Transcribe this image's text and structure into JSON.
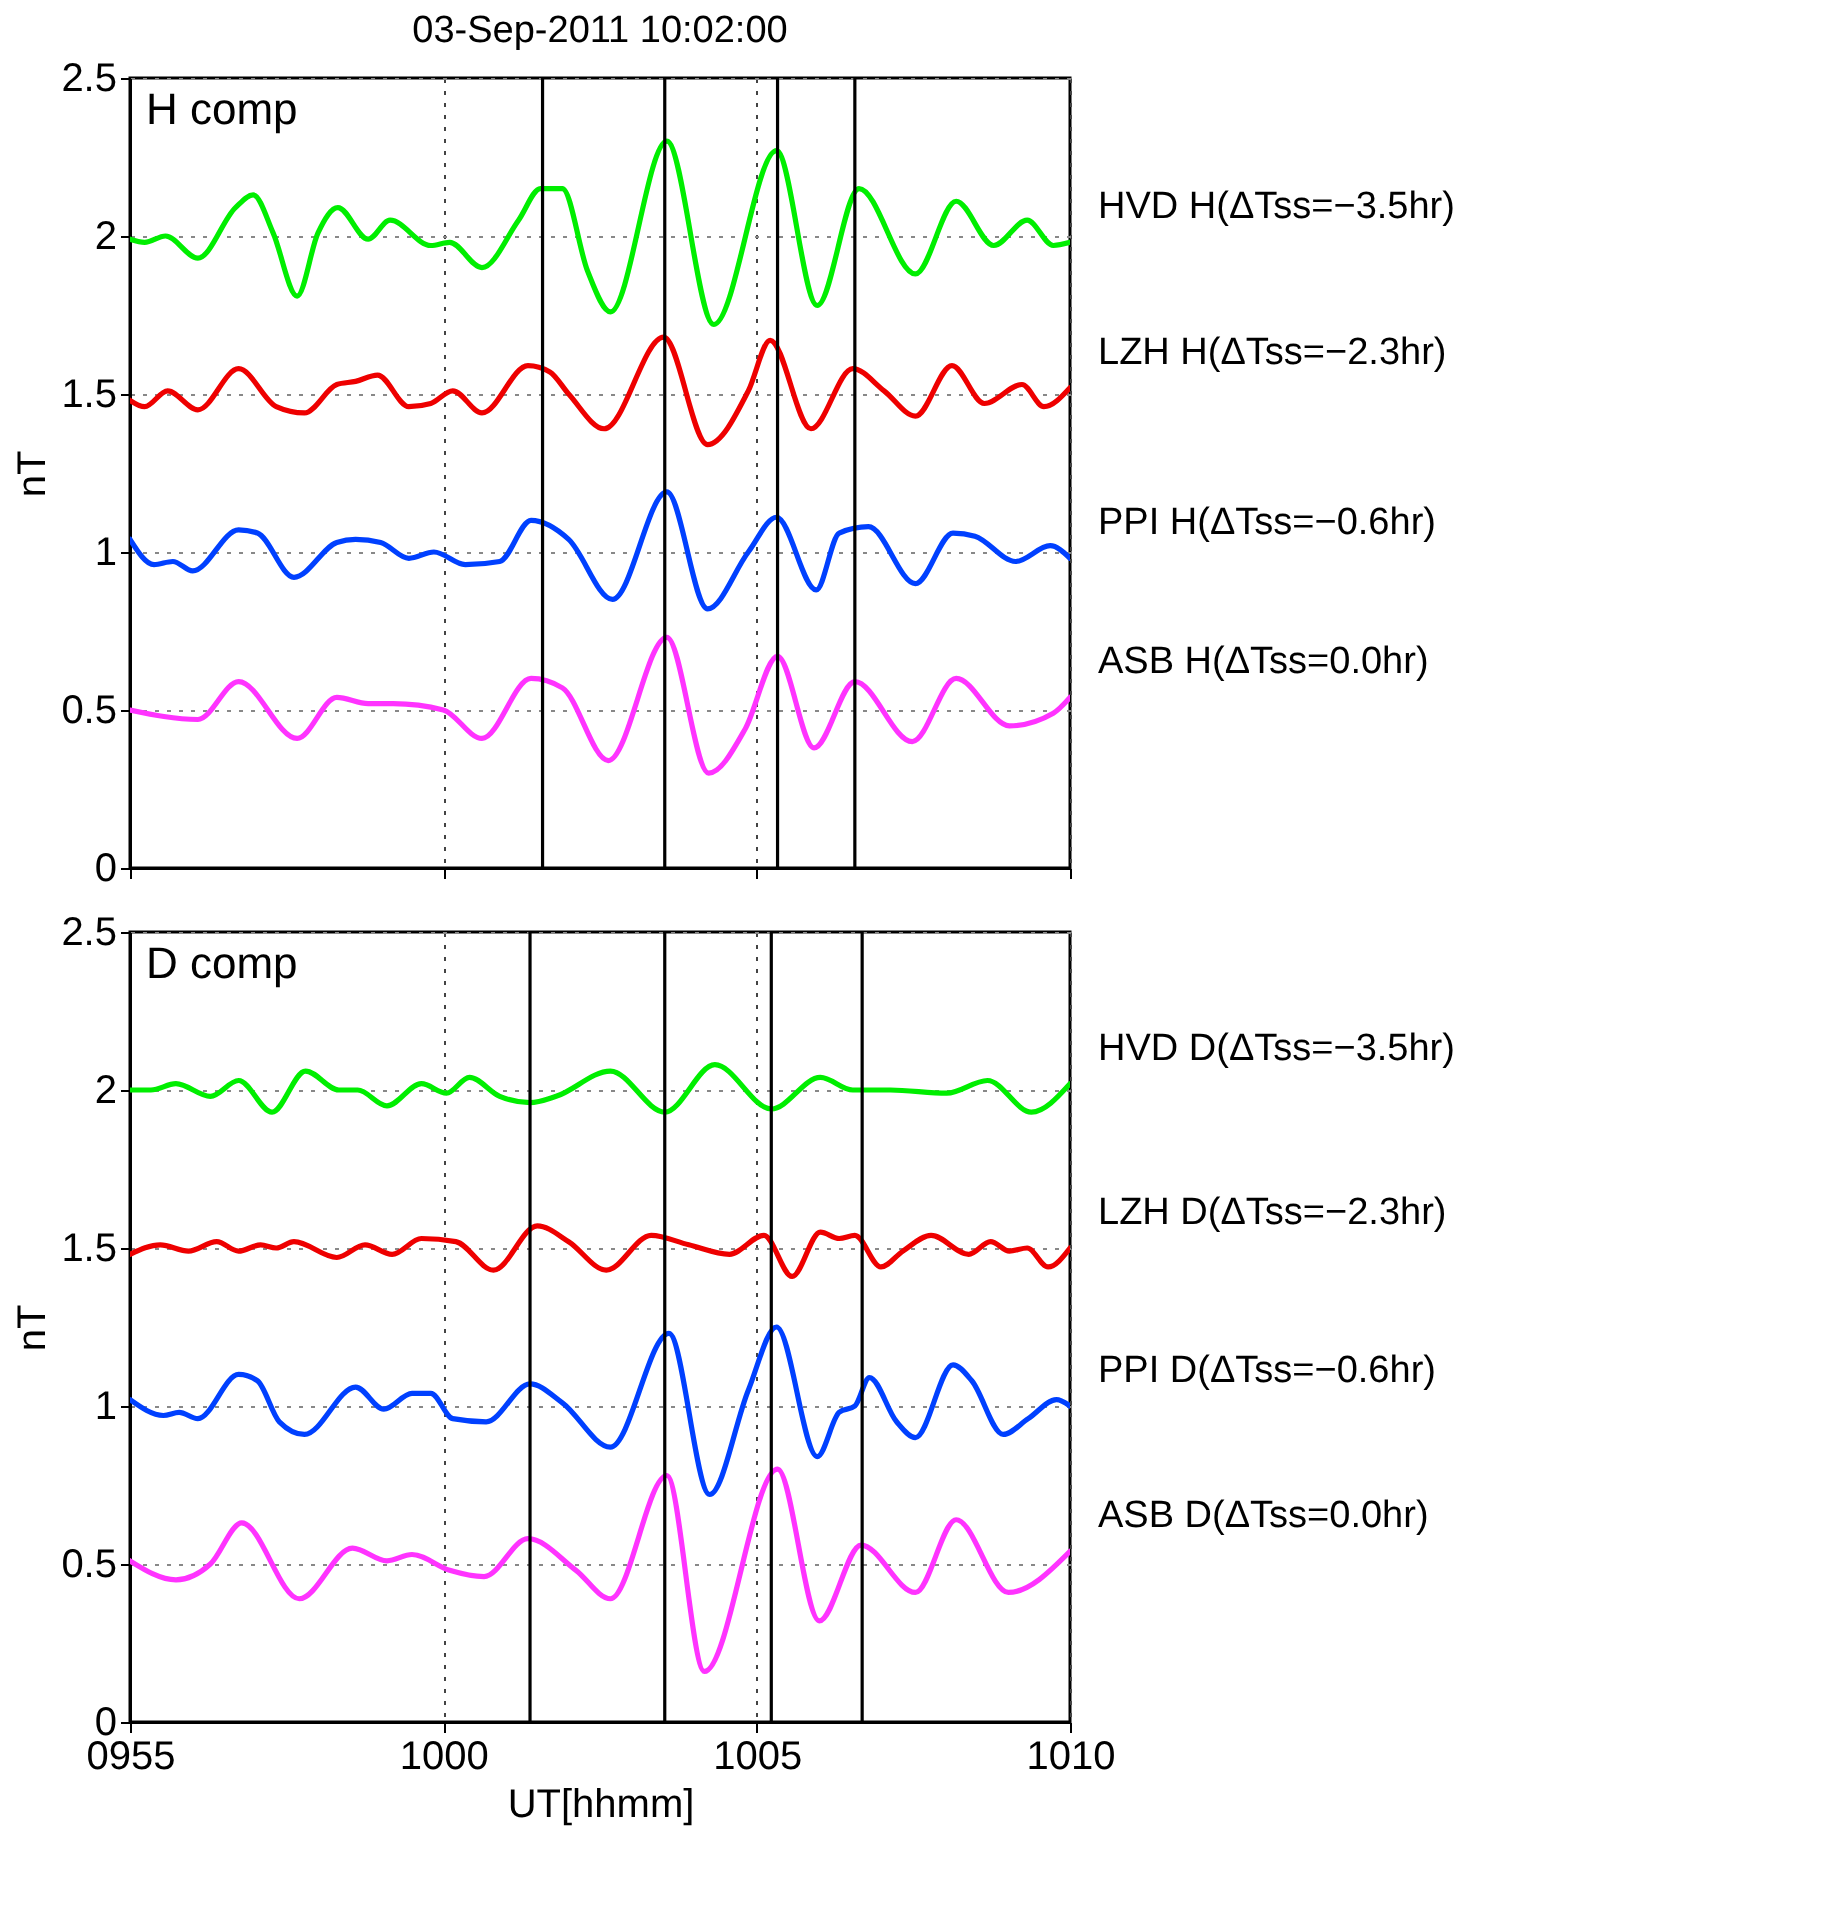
{
  "chart_data": [
    {
      "type": "line",
      "title": "03-Sep-2011 10:02:00",
      "annotations": [
        "H comp"
      ],
      "ylabel": "nT",
      "xlim": [
        "2011-09-03T09:55",
        "2011-09-03T10:10"
      ],
      "xticks": [
        {
          "value": "2011-09-03T09:55",
          "label": null
        },
        {
          "value": "2011-09-03T10:00",
          "label": null
        },
        {
          "value": "2011-09-03T10:05",
          "label": null
        },
        {
          "value": "2011-09-03T10:10",
          "label": null
        }
      ],
      "ylim": [
        0,
        2.5
      ],
      "yticks": [
        0,
        0.5,
        1,
        1.5,
        2,
        2.5
      ],
      "grid": true,
      "tick_labels": "y",
      "line_style": "solid",
      "ref_lines": [
        {
          "axis": "x",
          "value": "2011-09-03T10:01:35",
          "color": "#000000"
        },
        {
          "axis": "x",
          "value": "2011-09-03T10:03:32",
          "color": "#000000"
        },
        {
          "axis": "x",
          "value": "2011-09-03T10:05:20",
          "color": "#000000"
        },
        {
          "axis": "x",
          "value": "2011-09-03T10:06:34",
          "color": "#000000"
        }
      ],
      "series": [
        {
          "name": "HVD H(ΔTss=−3.5hr)",
          "color": "#00ee00",
          "x": [
            "2011-09-03T09:55:00",
            "2011-09-03T09:55:14",
            "2011-09-03T09:55:34",
            "2011-09-03T09:56:05",
            "2011-09-03T09:56:41",
            "2011-09-03T09:56:58",
            "2011-09-03T09:57:17",
            "2011-09-03T09:57:40",
            "2011-09-03T09:58:00",
            "2011-09-03T09:58:19",
            "2011-09-03T09:58:48",
            "2011-09-03T09:59:09",
            "2011-09-03T09:59:48",
            "2011-09-03T10:00:06",
            "2011-09-03T10:00:37",
            "2011-09-03T10:01:12",
            "2011-09-03T10:01:33",
            "2011-09-03T10:01:54",
            "2011-09-03T10:02:18",
            "2011-09-03T10:02:40",
            "2011-09-03T10:03:34",
            "2011-09-03T10:04:19",
            "2011-09-03T10:05:19",
            "2011-09-03T10:05:58",
            "2011-09-03T10:06:38",
            "2011-09-03T10:07:32",
            "2011-09-03T10:08:11",
            "2011-09-03T10:08:47",
            "2011-09-03T10:09:19",
            "2011-09-03T10:09:44",
            "2011-09-03T10:10:00"
          ],
          "values": [
            1.99,
            1.98,
            2.0,
            1.93,
            2.09,
            2.13,
            2.01,
            1.81,
            2.01,
            2.09,
            1.99,
            2.05,
            1.97,
            1.98,
            1.9,
            2.05,
            2.15,
            2.15,
            1.89,
            1.76,
            2.3,
            1.72,
            2.27,
            1.78,
            2.15,
            1.88,
            2.11,
            1.97,
            2.05,
            1.97,
            1.98
          ]
        },
        {
          "name": "LZH H(ΔTss=−2.3hr)",
          "color": "#ee0000",
          "x": [
            "2011-09-03T09:55:00",
            "2011-09-03T09:55:14",
            "2011-09-03T09:55:36",
            "2011-09-03T09:56:05",
            "2011-09-03T09:56:44",
            "2011-09-03T09:57:20",
            "2011-09-03T09:57:47",
            "2011-09-03T09:58:18",
            "2011-09-03T09:58:36",
            "2011-09-03T09:58:57",
            "2011-09-03T09:59:27",
            "2011-09-03T09:59:48",
            "2011-09-03T10:00:09",
            "2011-09-03T10:00:37",
            "2011-09-03T10:01:21",
            "2011-09-03T10:01:42",
            "2011-09-03T10:02:00",
            "2011-09-03T10:02:34",
            "2011-09-03T10:03:31",
            "2011-09-03T10:04:13",
            "2011-09-03T10:04:52",
            "2011-09-03T10:05:13",
            "2011-09-03T10:05:52",
            "2011-09-03T10:06:32",
            "2011-09-03T10:07:02",
            "2011-09-03T10:07:32",
            "2011-09-03T10:08:07",
            "2011-09-03T10:08:38",
            "2011-09-03T10:09:14",
            "2011-09-03T10:09:35",
            "2011-09-03T10:10:00"
          ],
          "values": [
            1.48,
            1.46,
            1.51,
            1.45,
            1.58,
            1.46,
            1.44,
            1.53,
            1.54,
            1.56,
            1.46,
            1.47,
            1.51,
            1.44,
            1.59,
            1.57,
            1.5,
            1.39,
            1.68,
            1.34,
            1.51,
            1.67,
            1.39,
            1.58,
            1.51,
            1.43,
            1.59,
            1.47,
            1.53,
            1.46,
            1.52
          ]
        },
        {
          "name": "PPI H(ΔTss=−0.6hr)",
          "color": "#0040ff",
          "x": [
            "2011-09-03T09:55:00",
            "2011-09-03T09:55:23",
            "2011-09-03T09:55:41",
            "2011-09-03T09:56:00",
            "2011-09-03T09:56:44",
            "2011-09-03T09:57:02",
            "2011-09-03T09:57:37",
            "2011-09-03T09:58:18",
            "2011-09-03T09:58:36",
            "2011-09-03T09:59:00",
            "2011-09-03T09:59:27",
            "2011-09-03T09:59:51",
            "2011-09-03T10:00:21",
            "2011-09-03T10:00:54",
            "2011-09-03T10:01:24",
            "2011-09-03T10:02:00",
            "2011-09-03T10:02:42",
            "2011-09-03T10:03:34",
            "2011-09-03T10:04:13",
            "2011-09-03T10:04:52",
            "2011-09-03T10:05:19",
            "2011-09-03T10:05:57",
            "2011-09-03T10:06:19",
            "2011-09-03T10:06:47",
            "2011-09-03T10:07:32",
            "2011-09-03T10:08:08",
            "2011-09-03T10:08:29",
            "2011-09-03T10:09:08",
            "2011-09-03T10:09:41",
            "2011-09-03T10:10:00"
          ],
          "values": [
            1.04,
            0.96,
            0.97,
            0.94,
            1.07,
            1.06,
            0.92,
            1.03,
            1.04,
            1.03,
            0.98,
            1.0,
            0.96,
            0.97,
            1.1,
            1.04,
            0.85,
            1.19,
            0.82,
            1.0,
            1.11,
            0.88,
            1.06,
            1.08,
            0.9,
            1.06,
            1.05,
            0.97,
            1.02,
            0.98
          ]
        },
        {
          "name": "ASB H(ΔTss=0.0hr)",
          "color": "#ff33ff",
          "x": [
            "2011-09-03T09:55:00",
            "2011-09-03T09:56:05",
            "2011-09-03T09:56:44",
            "2011-09-03T09:57:40",
            "2011-09-03T09:58:18",
            "2011-09-03T09:58:48",
            "2011-09-03T09:59:12",
            "2011-09-03T10:00:00",
            "2011-09-03T10:00:37",
            "2011-09-03T10:01:24",
            "2011-09-03T10:01:54",
            "2011-09-03T10:02:38",
            "2011-09-03T10:03:34",
            "2011-09-03T10:04:14",
            "2011-09-03T10:04:49",
            "2011-09-03T10:05:20",
            "2011-09-03T10:05:55",
            "2011-09-03T10:06:34",
            "2011-09-03T10:07:29",
            "2011-09-03T10:08:11",
            "2011-09-03T10:09:02",
            "2011-09-03T10:09:44",
            "2011-09-03T10:10:00"
          ],
          "values": [
            0.5,
            0.47,
            0.59,
            0.41,
            0.54,
            0.52,
            0.52,
            0.5,
            0.41,
            0.6,
            0.57,
            0.34,
            0.73,
            0.3,
            0.44,
            0.67,
            0.38,
            0.59,
            0.4,
            0.6,
            0.45,
            0.49,
            0.54
          ]
        }
      ]
    },
    {
      "type": "line",
      "annotations": [
        "D comp"
      ],
      "xlabel": "UT[hhmm]",
      "ylabel": "nT",
      "xlim": [
        "2011-09-03T09:55",
        "2011-09-03T10:10"
      ],
      "xticks": [
        {
          "value": "2011-09-03T09:55",
          "label": "0955"
        },
        {
          "value": "2011-09-03T10:00",
          "label": "1000"
        },
        {
          "value": "2011-09-03T10:05",
          "label": "1005"
        },
        {
          "value": "2011-09-03T10:10",
          "label": "1010"
        }
      ],
      "ylim": [
        0,
        2.5
      ],
      "yticks": [
        0,
        0.5,
        1,
        1.5,
        2,
        2.5
      ],
      "grid": true,
      "line_style": "solid",
      "ref_lines": [
        {
          "axis": "x",
          "value": "2011-09-03T10:01:23",
          "color": "#000000"
        },
        {
          "axis": "x",
          "value": "2011-09-03T10:03:32",
          "color": "#000000"
        },
        {
          "axis": "x",
          "value": "2011-09-03T10:05:14",
          "color": "#000000"
        },
        {
          "axis": "x",
          "value": "2011-09-03T10:06:41",
          "color": "#000000"
        }
      ],
      "series": [
        {
          "name": "HVD D(ΔTss=−3.5hr)",
          "color": "#00ee00",
          "x": [
            "2011-09-03T09:55:00",
            "2011-09-03T09:55:20",
            "2011-09-03T09:55:44",
            "2011-09-03T09:56:17",
            "2011-09-03T09:56:44",
            "2011-09-03T09:57:16",
            "2011-09-03T09:57:48",
            "2011-09-03T09:58:20",
            "2011-09-03T09:58:38",
            "2011-09-03T09:59:06",
            "2011-09-03T09:59:39",
            "2011-09-03T10:00:03",
            "2011-09-03T10:00:25",
            "2011-09-03T10:00:54",
            "2011-09-03T10:01:23",
            "2011-09-03T10:01:48",
            "2011-09-03T10:02:40",
            "2011-09-03T10:03:32",
            "2011-09-03T10:04:20",
            "2011-09-03T10:05:14",
            "2011-09-03T10:06:01",
            "2011-09-03T10:06:32",
            "2011-09-03T10:07:08",
            "2011-09-03T10:08:02",
            "2011-09-03T10:08:41",
            "2011-09-03T10:09:23",
            "2011-09-03T10:10:00"
          ],
          "values": [
            2.0,
            2.0,
            2.02,
            1.98,
            2.03,
            1.93,
            2.06,
            2.0,
            2.0,
            1.95,
            2.02,
            1.99,
            2.04,
            1.98,
            1.96,
            1.98,
            2.06,
            1.93,
            2.08,
            1.94,
            2.04,
            2.0,
            2.0,
            1.99,
            2.03,
            1.93,
            2.02
          ]
        },
        {
          "name": "LZH D(ΔTss=−2.3hr)",
          "color": "#ee0000",
          "x": [
            "2011-09-03T09:55:00",
            "2011-09-03T09:55:29",
            "2011-09-03T09:55:56",
            "2011-09-03T09:56:23",
            "2011-09-03T09:56:44",
            "2011-09-03T09:57:05",
            "2011-09-03T09:57:20",
            "2011-09-03T09:57:37",
            "2011-09-03T09:58:18",
            "2011-09-03T09:58:45",
            "2011-09-03T09:59:11",
            "2011-09-03T09:59:39",
            "2011-09-03T10:00:12",
            "2011-09-03T10:00:48",
            "2011-09-03T10:01:30",
            "2011-09-03T10:02:00",
            "2011-09-03T10:02:36",
            "2011-09-03T10:03:19",
            "2011-09-03T10:03:55",
            "2011-09-03T10:04:34",
            "2011-09-03T10:05:07",
            "2011-09-03T10:05:34",
            "2011-09-03T10:06:01",
            "2011-09-03T10:06:19",
            "2011-09-03T10:06:34",
            "2011-09-03T10:06:59",
            "2011-09-03T10:07:20",
            "2011-09-03T10:07:47",
            "2011-09-03T10:08:23",
            "2011-09-03T10:08:44",
            "2011-09-03T10:09:02",
            "2011-09-03T10:09:19",
            "2011-09-03T10:09:39",
            "2011-09-03T10:10:00"
          ],
          "values": [
            1.48,
            1.51,
            1.49,
            1.52,
            1.49,
            1.51,
            1.5,
            1.52,
            1.47,
            1.51,
            1.48,
            1.53,
            1.52,
            1.43,
            1.57,
            1.52,
            1.43,
            1.54,
            1.51,
            1.48,
            1.54,
            1.41,
            1.55,
            1.53,
            1.54,
            1.44,
            1.49,
            1.54,
            1.48,
            1.52,
            1.49,
            1.5,
            1.44,
            1.5
          ]
        },
        {
          "name": "PPI D(ΔTss=−0.6hr)",
          "color": "#0040ff",
          "x": [
            "2011-09-03T09:55:00",
            "2011-09-03T09:55:32",
            "2011-09-03T09:55:47",
            "2011-09-03T09:56:05",
            "2011-09-03T09:56:44",
            "2011-09-03T09:57:02",
            "2011-09-03T09:57:23",
            "2011-09-03T09:57:47",
            "2011-09-03T09:58:36",
            "2011-09-03T09:59:03",
            "2011-09-03T09:59:30",
            "2011-09-03T09:59:48",
            "2011-09-03T10:00:09",
            "2011-09-03T10:00:41",
            "2011-09-03T10:01:23",
            "2011-09-03T10:01:54",
            "2011-09-03T10:02:40",
            "2011-09-03T10:03:36",
            "2011-09-03T10:04:15",
            "2011-09-03T10:04:52",
            "2011-09-03T10:05:19",
            "2011-09-03T10:05:58",
            "2011-09-03T10:06:19",
            "2011-09-03T10:06:34",
            "2011-09-03T10:06:48",
            "2011-09-03T10:07:14",
            "2011-09-03T10:07:32",
            "2011-09-03T10:08:08",
            "2011-09-03T10:08:26",
            "2011-09-03T10:08:56",
            "2011-09-03T10:09:20",
            "2011-09-03T10:09:47",
            "2011-09-03T10:10:00"
          ],
          "values": [
            1.02,
            0.97,
            0.98,
            0.96,
            1.1,
            1.08,
            0.95,
            0.91,
            1.06,
            0.99,
            1.04,
            1.04,
            0.96,
            0.95,
            1.07,
            1.01,
            0.87,
            1.23,
            0.72,
            1.05,
            1.25,
            0.84,
            0.98,
            1.0,
            1.09,
            0.95,
            0.9,
            1.13,
            1.08,
            0.91,
            0.96,
            1.02,
            1.0
          ]
        },
        {
          "name": "ASB D(ΔTss=0.0hr)",
          "color": "#ff33ff",
          "x": [
            "2011-09-03T09:55:00",
            "2011-09-03T09:55:44",
            "2011-09-03T09:56:17",
            "2011-09-03T09:56:47",
            "2011-09-03T09:57:42",
            "2011-09-03T09:58:33",
            "2011-09-03T09:59:06",
            "2011-09-03T09:59:30",
            "2011-09-03T10:00:06",
            "2011-09-03T10:00:39",
            "2011-09-03T10:01:21",
            "2011-09-03T10:02:07",
            "2011-09-03T10:02:40",
            "2011-09-03T10:03:34",
            "2011-09-03T10:04:10",
            "2011-09-03T10:05:20",
            "2011-09-03T10:06:00",
            "2011-09-03T10:06:40",
            "2011-09-03T10:07:32",
            "2011-09-03T10:08:11",
            "2011-09-03T10:09:01",
            "2011-09-03T10:10:00"
          ],
          "values": [
            0.51,
            0.45,
            0.5,
            0.63,
            0.39,
            0.55,
            0.51,
            0.53,
            0.48,
            0.46,
            0.58,
            0.48,
            0.39,
            0.78,
            0.16,
            0.8,
            0.32,
            0.56,
            0.41,
            0.64,
            0.41,
            0.54
          ]
        }
      ]
    }
  ]
}
